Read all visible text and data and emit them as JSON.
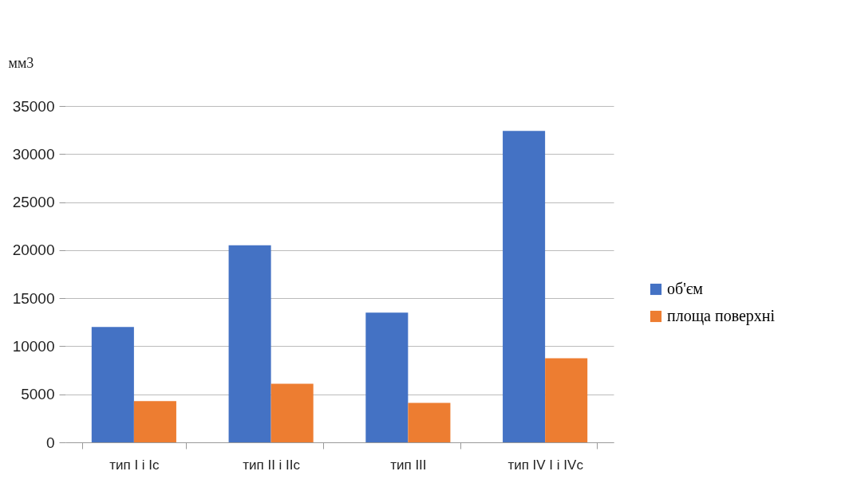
{
  "chart_data": {
    "type": "bar",
    "ylabel": "мм3",
    "categories": [
      "тип I і Ic",
      "тип II і IIc",
      "тип III",
      "тип IV I і IVc"
    ],
    "series": [
      {
        "name": "об'єм",
        "color": "#4472c4",
        "values": [
          12000,
          20500,
          13500,
          32400
        ]
      },
      {
        "name": "площа поверхні",
        "color": "#ed7d31",
        "values": [
          4300,
          6100,
          4100,
          8750
        ]
      }
    ],
    "ylim": [
      0,
      35000
    ],
    "yticks": [
      0,
      5000,
      10000,
      15000,
      20000,
      25000,
      30000,
      35000
    ],
    "grid": "y",
    "legend": "right"
  }
}
